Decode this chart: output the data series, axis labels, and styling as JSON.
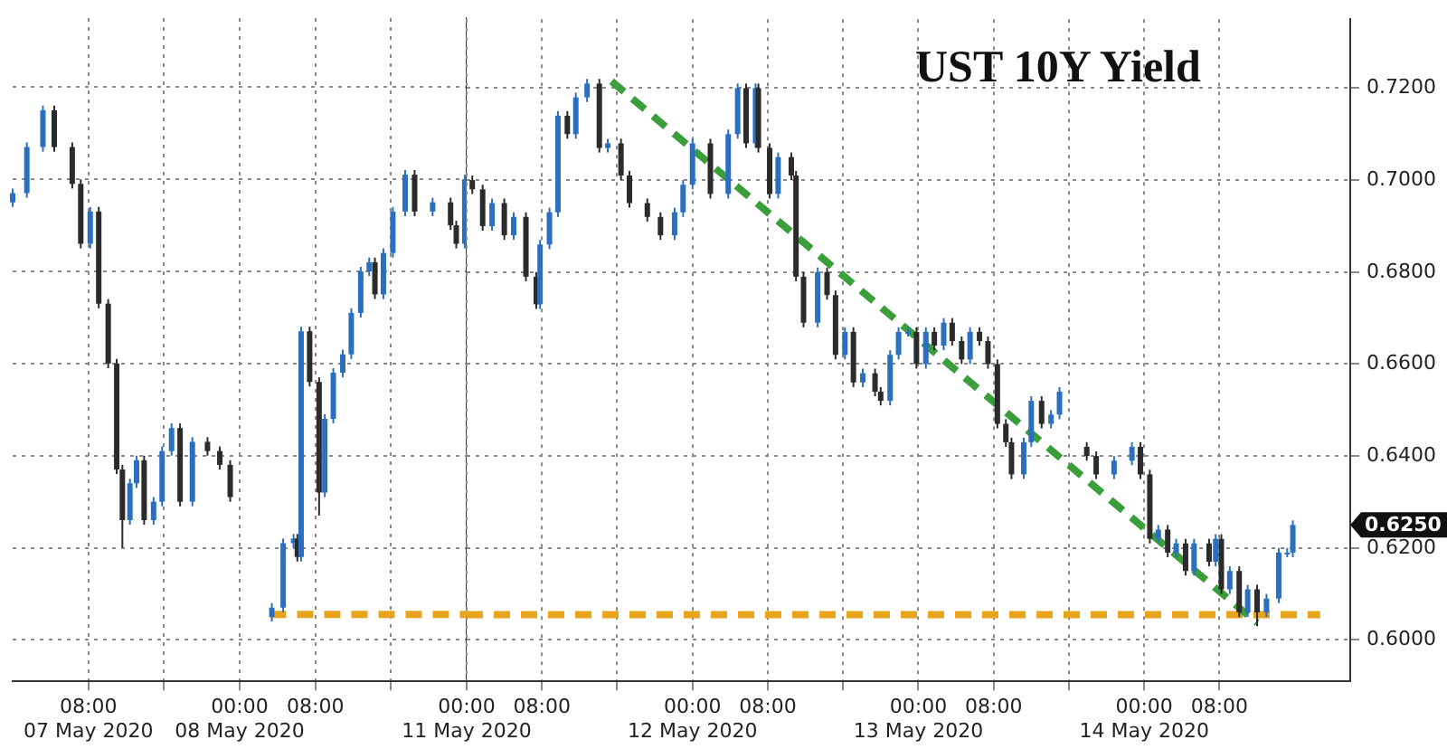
{
  "chart_data": [
    {
      "type": "candlestick",
      "tick_labels": "x",
      "colors": [
        "#2a6fc0",
        "#2a6fc0",
        "#2a6fc0",
        "#2b2b2b",
        "#2b2b2b",
        "#2b2b2b",
        "#2a6fc0",
        "#2b2b2b",
        "#2b2b2b",
        "#2b2b2b",
        "#2b2b2b",
        "#2a6fc0",
        "#2a6fc0",
        "#2b2b2b",
        "#2a6fc0",
        "#2a6fc0",
        "#2a6fc0",
        "#2b2b2b",
        "#2a6fc0",
        "#2b2b2b",
        "#2b2b2b",
        "#2b2b2b",
        "#2a6fc0",
        "#2a6fc0",
        "#2a6fc0",
        "#2b2b2b",
        "#2a6fc0",
        "#2b2b2b",
        "#2b2b2b",
        "#2a6fc0",
        "#2a6fc0",
        "#2a6fc0",
        "#2a6fc0",
        "#2a6fc0",
        "#2a6fc0",
        "#2b2b2b",
        "#2a6fc0",
        "#2a6fc0",
        "#2a6fc0",
        "#2b2b2b",
        "#2a6fc0",
        "#2b2b2b",
        "#2b2b2b",
        "#2a6fc0"
      ],
      "x": [
        "2020-05-07T00:00",
        "2020-05-07T01:30",
        "2020-05-07T03:12",
        "2020-05-07T04:24",
        "2020-05-07T06:18",
        "2020-05-07T07:12",
        "2020-05-07T08:12",
        "2020-05-07T09:06",
        "2020-05-07T10:06",
        "2020-05-07T11:00",
        "2020-05-07T11:36",
        "2020-05-07T12:24",
        "2020-05-07T13:06",
        "2020-05-07T13:54",
        "2020-05-07T14:54",
        "2020-05-07T15:48",
        "2020-05-07T16:48",
        "2020-05-07T17:42",
        "2020-05-07T19:00",
        "2020-05-07T20:36",
        "2020-05-07T21:54",
        "2020-05-07T23:00",
        "2020-05-08T03:24",
        "2020-05-08T04:36",
        "2020-05-08T05:42",
        "2020-05-08T06:06",
        "2020-05-08T06:30",
        "2020-05-08T07:24",
        "2020-05-08T08:24",
        "2020-05-08T09:00",
        "2020-05-08T09:54",
        "2020-05-08T10:54",
        "2020-05-08T11:48",
        "2020-05-08T12:48",
        "2020-05-08T13:42",
        "2020-05-08T14:18",
        "2020-05-08T15:12",
        "2020-05-08T16:12",
        "2020-05-08T17:30",
        "2020-05-08T18:30",
        "2020-05-08T20:24",
        "2020-05-08T22:18",
        "2020-05-08T22:54",
        "2020-05-08T23:48"
      ],
      "ohlc": [
        [
          0.695,
          0.698,
          0.694,
          0.697
        ],
        [
          0.697,
          0.708,
          0.696,
          0.707
        ],
        [
          0.707,
          0.716,
          0.706,
          0.715
        ],
        [
          0.715,
          0.716,
          0.706,
          0.707
        ],
        [
          0.707,
          0.708,
          0.698,
          0.699
        ],
        [
          0.699,
          0.7,
          0.685,
          0.686
        ],
        [
          0.686,
          0.694,
          0.685,
          0.693
        ],
        [
          0.693,
          0.694,
          0.672,
          0.673
        ],
        [
          0.673,
          0.674,
          0.659,
          0.66
        ],
        [
          0.66,
          0.661,
          0.636,
          0.637
        ],
        [
          0.637,
          0.638,
          0.62,
          0.626
        ],
        [
          0.626,
          0.635,
          0.625,
          0.634
        ],
        [
          0.634,
          0.64,
          0.633,
          0.639
        ],
        [
          0.639,
          0.64,
          0.625,
          0.626
        ],
        [
          0.626,
          0.631,
          0.625,
          0.63
        ],
        [
          0.63,
          0.642,
          0.629,
          0.641
        ],
        [
          0.641,
          0.647,
          0.64,
          0.646
        ],
        [
          0.646,
          0.647,
          0.629,
          0.63
        ],
        [
          0.63,
          0.644,
          0.629,
          0.643
        ],
        [
          0.643,
          0.644,
          0.64,
          0.641
        ],
        [
          0.641,
          0.642,
          0.637,
          0.638
        ],
        [
          0.638,
          0.639,
          0.63,
          0.631
        ],
        [
          0.605,
          0.608,
          0.604,
          0.607
        ],
        [
          0.607,
          0.622,
          0.606,
          0.621
        ],
        [
          0.621,
          0.623,
          0.62,
          0.622
        ],
        [
          0.622,
          0.623,
          0.617,
          0.618
        ],
        [
          0.618,
          0.668,
          0.617,
          0.667
        ],
        [
          0.667,
          0.668,
          0.655,
          0.656
        ],
        [
          0.656,
          0.657,
          0.627,
          0.632
        ],
        [
          0.632,
          0.649,
          0.631,
          0.648
        ],
        [
          0.648,
          0.659,
          0.647,
          0.658
        ],
        [
          0.658,
          0.663,
          0.657,
          0.662
        ],
        [
          0.662,
          0.672,
          0.661,
          0.671
        ],
        [
          0.671,
          0.681,
          0.67,
          0.68
        ],
        [
          0.68,
          0.683,
          0.679,
          0.682
        ],
        [
          0.682,
          0.683,
          0.674,
          0.675
        ],
        [
          0.675,
          0.685,
          0.674,
          0.684
        ],
        [
          0.684,
          0.694,
          0.683,
          0.693
        ],
        [
          0.693,
          0.702,
          0.692,
          0.701
        ],
        [
          0.701,
          0.702,
          0.692,
          0.693
        ],
        [
          0.693,
          0.696,
          0.692,
          0.695
        ],
        [
          0.695,
          0.696,
          0.689,
          0.69
        ],
        [
          0.69,
          0.691,
          0.685,
          0.686
        ],
        [
          0.686,
          0.701,
          0.685,
          0.7
        ]
      ],
      "series": [
        {
          "type": "line",
          "color": "#e8a41c",
          "line_style": "dashed",
          "x": [
            "2020-05-08T03:12",
            "2020-05-09T00:00"
          ],
          "values": [
            0.6055,
            0.6055
          ]
        }
      ],
      "xlim": [
        "2020-05-07T00:00",
        "2020-05-09T00:00"
      ],
      "xticks": [
        {
          "value": "2020-05-07T08:00",
          "label": "08:00\n07 May 2020"
        },
        {
          "value": "2020-05-07T16:00",
          "label": null
        },
        {
          "value": "2020-05-08T00:00",
          "label": "00:00\n08 May 2020"
        },
        {
          "value": "2020-05-08T08:00",
          "label": "08:00"
        },
        {
          "value": "2020-05-08T16:00",
          "label": null
        }
      ],
      "ylim": [
        0.591,
        0.735
      ],
      "yticks": [
        0.6,
        0.62,
        0.64,
        0.66,
        0.68,
        0.7,
        0.72
      ],
      "grid": true,
      "legend": false
    },
    {
      "type": "candlestick",
      "title": "UST 10Y Yield",
      "colors": [
        "#2b2b2b",
        "#2b2b2b",
        "#2a6fc0",
        "#2b2b2b",
        "#2a6fc0",
        "#2b2b2b",
        "#2b2b2b",
        "#2a6fc0",
        "#2a6fc0",
        "#2a6fc0",
        "#2b2b2b",
        "#2a6fc0",
        "#2a6fc0",
        "#2b2b2b",
        "#2a6fc0",
        "#2b2b2b",
        "#2b2b2b",
        "#2b2b2b",
        "#2b2b2b",
        "#2a6fc0",
        "#2a6fc0",
        "#2a6fc0",
        "#2b2b2b",
        "#2a6fc0",
        "#2a6fc0",
        "#2b2b2b",
        "#2a6fc0",
        "#2b2b2b",
        "#2b2b2b",
        "#2a6fc0",
        "#2b2b2b",
        "#2b2b2b",
        "#2b2b2b",
        "#2a6fc0",
        "#2b2b2b",
        "#2b2b2b",
        "#2a6fc0",
        "#2b2b2b",
        "#2a6fc0",
        "#2b2b2b",
        "#2b2b2b",
        "#2a6fc0",
        "#2a6fc0",
        "#2a6fc0",
        "#2b2b2b",
        "#2a6fc0",
        "#2b2b2b",
        "#2a6fc0",
        "#2b2b2b",
        "#2b2b2b",
        "#2a6fc0",
        "#2b2b2b",
        "#2b2b2b",
        "#2b2b2b",
        "#2b2b2b",
        "#2b2b2b",
        "#2a6fc0",
        "#2a6fc0",
        "#2b2b2b",
        "#2a6fc0",
        "#2a6fc0",
        "#2b2b2b",
        "#2b2b2b",
        "#2a6fc0",
        "#2a6fc0",
        "#2b2b2b",
        "#2b2b2b",
        "#2a6fc0",
        "#2b2b2b",
        "#2a6fc0",
        "#2b2b2b",
        "#2a6fc0",
        "#2b2b2b",
        "#2a6fc0",
        "#2b2b2b",
        "#2a6fc0",
        "#2b2b2b",
        "#2a6fc0",
        "#2b2b2b",
        "#2a6fc0",
        "#2a6fc0",
        "#2a6fc0",
        "#2a6fc0"
      ],
      "x": [
        "2020-05-11T00:36",
        "2020-05-11T01:42",
        "2020-05-11T02:42",
        "2020-05-11T04:00",
        "2020-05-11T05:00",
        "2020-05-11T06:18",
        "2020-05-11T07:24",
        "2020-05-11T07:48",
        "2020-05-11T08:48",
        "2020-05-11T09:42",
        "2020-05-11T10:42",
        "2020-05-11T11:36",
        "2020-05-11T12:48",
        "2020-05-11T14:06",
        "2020-05-11T15:00",
        "2020-05-11T16:24",
        "2020-05-11T17:18",
        "2020-05-11T19:12",
        "2020-05-11T20:36",
        "2020-05-11T22:06",
        "2020-05-11T23:00",
        "2020-05-12T00:00",
        "2020-05-12T01:54",
        "2020-05-12T03:48",
        "2020-05-12T04:48",
        "2020-05-12T05:42",
        "2020-05-12T06:42",
        "2020-05-12T07:00",
        "2020-05-12T08:12",
        "2020-05-12T09:06",
        "2020-05-12T10:30",
        "2020-05-12T11:00",
        "2020-05-12T11:48",
        "2020-05-12T13:18",
        "2020-05-12T14:18",
        "2020-05-12T15:12",
        "2020-05-12T16:12",
        "2020-05-12T17:06",
        "2020-05-12T18:06",
        "2020-05-12T19:24",
        "2020-05-12T20:00",
        "2020-05-12T21:00",
        "2020-05-12T21:54",
        "2020-05-12T22:54",
        "2020-05-12T23:48",
        "2020-05-13T00:48",
        "2020-05-13T01:42",
        "2020-05-13T02:42",
        "2020-05-13T03:36",
        "2020-05-13T04:36",
        "2020-05-13T05:30",
        "2020-05-13T06:30",
        "2020-05-13T07:24",
        "2020-05-13T08:24",
        "2020-05-13T09:18",
        "2020-05-13T09:54",
        "2020-05-13T11:12",
        "2020-05-13T12:00",
        "2020-05-13T13:06",
        "2020-05-13T14:06",
        "2020-05-13T15:00",
        "2020-05-13T17:54",
        "2020-05-13T18:54",
        "2020-05-13T20:48",
        "2020-05-13T22:42",
        "2020-05-13T23:36",
        "2020-05-14T00:36",
        "2020-05-14T01:30",
        "2020-05-14T02:30",
        "2020-05-14T03:24",
        "2020-05-14T04:24",
        "2020-05-14T05:18",
        "2020-05-14T06:54",
        "2020-05-14T07:36",
        "2020-05-14T08:12",
        "2020-05-14T09:06",
        "2020-05-14T10:06",
        "2020-05-14T11:00",
        "2020-05-14T12:00",
        "2020-05-14T13:00",
        "2020-05-14T14:18",
        "2020-05-14T15:12",
        "2020-05-14T15:48"
      ],
      "ohlc": [
        [
          0.7,
          0.701,
          0.697,
          0.698
        ],
        [
          0.698,
          0.699,
          0.689,
          0.69
        ],
        [
          0.69,
          0.696,
          0.689,
          0.695
        ],
        [
          0.695,
          0.696,
          0.687,
          0.688
        ],
        [
          0.688,
          0.693,
          0.687,
          0.692
        ],
        [
          0.692,
          0.693,
          0.678,
          0.679
        ],
        [
          0.679,
          0.68,
          0.672,
          0.673
        ],
        [
          0.673,
          0.687,
          0.672,
          0.686
        ],
        [
          0.686,
          0.694,
          0.685,
          0.693
        ],
        [
          0.693,
          0.715,
          0.692,
          0.714
        ],
        [
          0.714,
          0.715,
          0.709,
          0.71
        ],
        [
          0.71,
          0.719,
          0.709,
          0.718
        ],
        [
          0.718,
          0.722,
          0.717,
          0.721
        ],
        [
          0.721,
          0.722,
          0.706,
          0.707
        ],
        [
          0.707,
          0.709,
          0.706,
          0.708
        ],
        [
          0.708,
          0.709,
          0.7,
          0.701
        ],
        [
          0.701,
          0.702,
          0.694,
          0.695
        ],
        [
          0.695,
          0.696,
          0.691,
          0.692
        ],
        [
          0.692,
          0.693,
          0.687,
          0.688
        ],
        [
          0.688,
          0.694,
          0.687,
          0.693
        ],
        [
          0.693,
          0.7,
          0.692,
          0.699
        ],
        [
          0.699,
          0.709,
          0.698,
          0.708
        ],
        [
          0.708,
          0.709,
          0.696,
          0.697
        ],
        [
          0.697,
          0.711,
          0.696,
          0.71
        ],
        [
          0.71,
          0.721,
          0.709,
          0.72
        ],
        [
          0.72,
          0.721,
          0.707,
          0.708
        ],
        [
          0.708,
          0.721,
          0.707,
          0.72
        ],
        [
          0.72,
          0.721,
          0.706,
          0.707
        ],
        [
          0.707,
          0.708,
          0.696,
          0.697
        ],
        [
          0.697,
          0.706,
          0.696,
          0.705
        ],
        [
          0.705,
          0.706,
          0.7,
          0.701
        ],
        [
          0.701,
          0.702,
          0.678,
          0.679
        ],
        [
          0.679,
          0.68,
          0.668,
          0.669
        ],
        [
          0.669,
          0.681,
          0.668,
          0.68
        ],
        [
          0.68,
          0.681,
          0.674,
          0.675
        ],
        [
          0.675,
          0.676,
          0.661,
          0.662
        ],
        [
          0.662,
          0.668,
          0.661,
          0.667
        ],
        [
          0.667,
          0.668,
          0.655,
          0.656
        ],
        [
          0.656,
          0.659,
          0.655,
          0.658
        ],
        [
          0.658,
          0.659,
          0.653,
          0.654
        ],
        [
          0.654,
          0.655,
          0.651,
          0.652
        ],
        [
          0.652,
          0.663,
          0.651,
          0.662
        ],
        [
          0.662,
          0.668,
          0.661,
          0.667
        ],
        [
          0.667,
          0.668,
          0.666,
          0.667
        ],
        [
          0.667,
          0.668,
          0.659,
          0.66
        ],
        [
          0.66,
          0.668,
          0.659,
          0.667
        ],
        [
          0.667,
          0.668,
          0.663,
          0.664
        ],
        [
          0.664,
          0.67,
          0.663,
          0.669
        ],
        [
          0.669,
          0.67,
          0.664,
          0.665
        ],
        [
          0.665,
          0.666,
          0.66,
          0.661
        ],
        [
          0.661,
          0.668,
          0.66,
          0.667
        ],
        [
          0.667,
          0.668,
          0.664,
          0.665
        ],
        [
          0.665,
          0.666,
          0.659,
          0.66
        ],
        [
          0.66,
          0.661,
          0.646,
          0.647
        ],
        [
          0.647,
          0.648,
          0.642,
          0.643
        ],
        [
          0.643,
          0.644,
          0.635,
          0.636
        ],
        [
          0.636,
          0.644,
          0.635,
          0.643
        ],
        [
          0.643,
          0.653,
          0.642,
          0.652
        ],
        [
          0.652,
          0.653,
          0.646,
          0.647
        ],
        [
          0.647,
          0.65,
          0.646,
          0.649
        ],
        [
          0.649,
          0.655,
          0.648,
          0.654
        ],
        [
          0.642,
          0.643,
          0.639,
          0.64
        ],
        [
          0.64,
          0.641,
          0.635,
          0.636
        ],
        [
          0.636,
          0.64,
          0.635,
          0.639
        ],
        [
          0.639,
          0.643,
          0.638,
          0.642
        ],
        [
          0.642,
          0.643,
          0.635,
          0.636
        ],
        [
          0.636,
          0.637,
          0.621,
          0.622
        ],
        [
          0.622,
          0.625,
          0.621,
          0.624
        ],
        [
          0.624,
          0.625,
          0.618,
          0.619
        ],
        [
          0.619,
          0.622,
          0.618,
          0.621
        ],
        [
          0.621,
          0.622,
          0.614,
          0.615
        ],
        [
          0.615,
          0.622,
          0.614,
          0.621
        ],
        [
          0.621,
          0.622,
          0.616,
          0.617
        ],
        [
          0.617,
          0.623,
          0.616,
          0.622
        ],
        [
          0.622,
          0.623,
          0.61,
          0.611
        ],
        [
          0.611,
          0.616,
          0.61,
          0.615
        ],
        [
          0.615,
          0.616,
          0.605,
          0.606
        ],
        [
          0.606,
          0.612,
          0.605,
          0.611
        ],
        [
          0.611,
          0.612,
          0.603,
          0.606
        ],
        [
          0.606,
          0.61,
          0.605,
          0.609
        ],
        [
          0.609,
          0.62,
          0.608,
          0.619
        ],
        [
          0.619,
          0.62,
          0.618,
          0.619
        ],
        [
          0.619,
          0.626,
          0.618,
          0.625
        ]
      ],
      "series": [
        {
          "type": "line",
          "color": "#3a9e3a",
          "line_style": "dashed",
          "x": [
            "2020-05-11T15:24",
            "2020-05-14T12:00"
          ],
          "values": [
            0.7215,
            0.6037
          ]
        },
        {
          "type": "line",
          "color": "#e8a41c",
          "line_style": "dashed",
          "x": [
            "2020-05-11T00:00",
            "2020-05-14T18:42"
          ],
          "values": [
            0.6055,
            0.6055
          ]
        }
      ],
      "annotations": [
        "0.6250"
      ],
      "xlim": [
        "2020-05-11T00:00",
        "2020-05-14T21:54"
      ],
      "xticks": [
        {
          "value": "2020-05-11T00:00",
          "label": "00:00\n11 May 2020"
        },
        {
          "value": "2020-05-11T08:00",
          "label": "08:00"
        },
        {
          "value": "2020-05-11T16:00",
          "label": null
        },
        {
          "value": "2020-05-12T00:00",
          "label": "00:00\n12 May 2020"
        },
        {
          "value": "2020-05-12T08:00",
          "label": "08:00"
        },
        {
          "value": "2020-05-12T16:00",
          "label": null
        },
        {
          "value": "2020-05-13T00:00",
          "label": "00:00\n13 May 2020"
        },
        {
          "value": "2020-05-13T08:00",
          "label": "08:00"
        },
        {
          "value": "2020-05-13T16:00",
          "label": null
        },
        {
          "value": "2020-05-14T00:00",
          "label": "00:00\n14 May 2020"
        },
        {
          "value": "2020-05-14T08:00",
          "label": "08:00"
        }
      ],
      "ylim": [
        0.591,
        0.735
      ],
      "yticks": [
        {
          "value": 0.6,
          "label": "0.6000"
        },
        {
          "value": 0.62,
          "label": "0.6200"
        },
        {
          "value": 0.64,
          "label": "0.6400"
        },
        {
          "value": 0.66,
          "label": "0.6600"
        },
        {
          "value": 0.68,
          "label": "0.6800"
        },
        {
          "value": 0.7,
          "label": "0.7000"
        },
        {
          "value": 0.72,
          "label": "0.7200"
        }
      ],
      "grid": true,
      "legend": false
    }
  ]
}
